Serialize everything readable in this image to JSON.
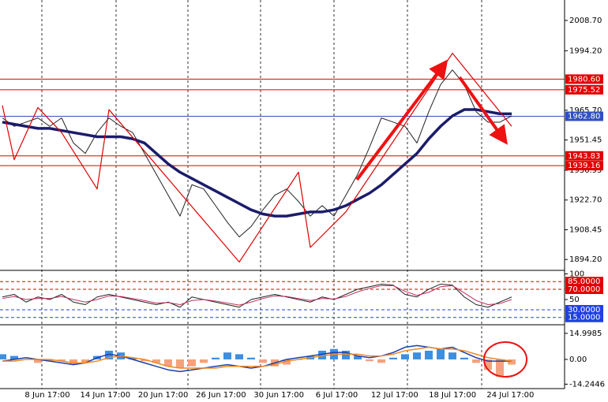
{
  "chart_data": [
    {
      "type": "line",
      "ylim": [
        1889,
        2018.5
      ],
      "yticks": [
        {
          "value": 2008.7,
          "label": "2008.70"
        },
        {
          "value": 1994.2,
          "label": "1994.20"
        },
        {
          "value": 1965.7,
          "label": "1965.70"
        },
        1951.45,
        1936.95,
        {
          "value": 1922.7,
          "label": "1922.70"
        },
        1908.45,
        {
          "value": 1894.2,
          "label": "1894.20"
        }
      ],
      "levels": [
        {
          "value": 1980.6,
          "label": "1980.60",
          "color": "#e00000"
        },
        {
          "value": 1975.52,
          "label": "1975.52",
          "color": "#e00000"
        },
        {
          "value": 1962.8,
          "label": "1962.80",
          "color": "#3050c0"
        },
        {
          "value": 1943.83,
          "label": "1943.83",
          "color": "#e00000"
        },
        {
          "value": 1939.16,
          "label": "1939.16",
          "color": "#e00000"
        }
      ],
      "series": [
        {
          "color": "#222222",
          "line_width": 1,
          "values": [
            1962,
            1958,
            1960,
            1962,
            1958,
            1962,
            1950,
            1945,
            1955,
            1962,
            1958,
            1955,
            1945,
            1935,
            1925,
            1915,
            1930,
            1928,
            1920,
            1912,
            1905,
            1910,
            1918,
            1925,
            1928,
            1922,
            1915,
            1920,
            1915,
            1925,
            1935,
            1948,
            1962,
            1960,
            1958,
            1950,
            1965,
            1978,
            1985,
            1978,
            1965,
            1960,
            1960,
            1963
          ]
        },
        {
          "color": "#1c1c6b",
          "line_width": 3.5,
          "values": [
            1960,
            1959,
            1958,
            1957,
            1957,
            1956,
            1955,
            1954,
            1953,
            1953,
            1953,
            1952,
            1950,
            1945,
            1940,
            1936,
            1933,
            1930,
            1927,
            1924,
            1921,
            1918,
            1916,
            1915,
            1915,
            1916,
            1917,
            1917,
            1918,
            1920,
            1923,
            1926,
            1930,
            1935,
            1940,
            1945,
            1952,
            1958,
            1963,
            1966,
            1966,
            1965,
            1964,
            1964
          ]
        },
        {
          "color": "#e00000",
          "line_width": 1.2,
          "x": [
            0,
            1,
            3,
            5,
            8,
            9,
            20,
            25,
            26,
            29,
            38,
            43
          ],
          "values": [
            1968,
            1942,
            1967,
            1955,
            1928,
            1966,
            1893,
            1936,
            1900,
            1917,
            1993,
            1958
          ]
        }
      ]
    },
    {
      "type": "line",
      "ylim": [
        2.3,
        103.8
      ],
      "yticks": [
        100,
        50
      ],
      "levels": [
        {
          "value": 85,
          "label": "85.0000",
          "color": "#e00000"
        },
        {
          "value": 70,
          "label": "70.0000",
          "color": "#e00000"
        },
        {
          "value": 30,
          "label": "30.0000",
          "color": "#2040e0"
        },
        {
          "value": 15,
          "label": "15.0000",
          "color": "#2040e0"
        }
      ],
      "series": [
        {
          "color": "#222222",
          "line_width": 1,
          "values": [
            55,
            60,
            45,
            55,
            50,
            60,
            45,
            40,
            55,
            60,
            55,
            50,
            45,
            40,
            45,
            35,
            55,
            50,
            45,
            40,
            35,
            50,
            55,
            60,
            55,
            50,
            45,
            55,
            50,
            60,
            70,
            75,
            80,
            78,
            60,
            55,
            70,
            80,
            78,
            55,
            40,
            35,
            45,
            55
          ]
        },
        {
          "color": "#c03060",
          "line_width": 1,
          "values": [
            52,
            56,
            50,
            52,
            52,
            56,
            50,
            45,
            50,
            57,
            56,
            52,
            48,
            43,
            44,
            40,
            48,
            50,
            47,
            43,
            39,
            45,
            52,
            57,
            56,
            52,
            48,
            52,
            51,
            56,
            65,
            72,
            77,
            77,
            66,
            58,
            64,
            75,
            77,
            63,
            48,
            40,
            42,
            50
          ]
        }
      ]
    },
    {
      "type": "bar",
      "ylim": [
        -16.8,
        19.5
      ],
      "yticks": [
        14.9985,
        {
          "value": 0,
          "label": "0.00"
        },
        -14.2446
      ],
      "values": [
        3,
        2,
        0,
        -2,
        -1,
        -1,
        -3,
        -2,
        2,
        5,
        4,
        1,
        -1,
        -2,
        -4,
        -5,
        -4,
        -2,
        1,
        4,
        3,
        1,
        -2,
        -4,
        -3,
        0,
        2,
        5,
        6,
        5,
        2,
        -1,
        -2,
        1,
        3,
        4,
        5,
        6,
        4,
        1,
        -2,
        -6,
        -10,
        -3
      ],
      "colors": {
        "positive": "#3d8fe0",
        "negative": "#f4a27e"
      },
      "series": [
        {
          "color": "#1c3faa",
          "line_width": 1.5,
          "values": [
            -1,
            0,
            1,
            0,
            -1,
            -2,
            -3,
            -2,
            1,
            3,
            2,
            0,
            -2,
            -4,
            -6,
            -7,
            -6,
            -5,
            -4,
            -3,
            -4,
            -5,
            -4,
            -2,
            0,
            1,
            2,
            3,
            4,
            4,
            2,
            1,
            2,
            4,
            7,
            8,
            7,
            6,
            7,
            4,
            1,
            -1,
            -1,
            -1
          ]
        },
        {
          "color": "#f08a24",
          "line_width": 1.5,
          "values": [
            -1,
            -1,
            0,
            0,
            0,
            -1,
            -2,
            -2,
            -1,
            1,
            2,
            1,
            0,
            -2,
            -4,
            -5,
            -5,
            -5,
            -5,
            -4,
            -4,
            -4,
            -4,
            -3,
            -1,
            0,
            1,
            2,
            3,
            3,
            3,
            2,
            2,
            3,
            5,
            6,
            7,
            6,
            6,
            5,
            3,
            1,
            0,
            -1
          ]
        }
      ],
      "xticks": [
        "8 Jun 17:00",
        "14 Jun 17:00",
        "20 Jun 17:00",
        "26 Jun 17:00",
        "30 Jun 17:00",
        "6 Jul 17:00",
        "12 Jul 17:00",
        "18 Jul 17:00",
        "24 Jul 17:00"
      ]
    }
  ]
}
